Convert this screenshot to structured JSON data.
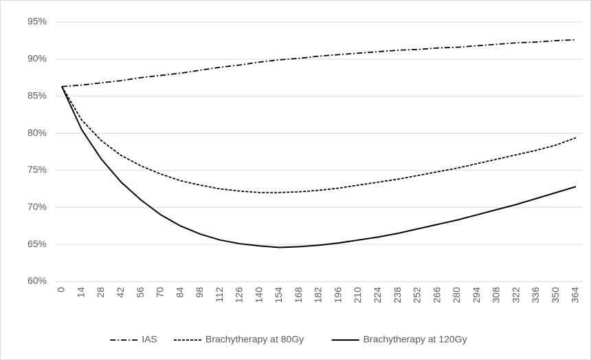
{
  "chart_data": {
    "type": "line",
    "categories": [
      "0",
      "14",
      "28",
      "42",
      "56",
      "70",
      "84",
      "98",
      "112",
      "126",
      "140",
      "154",
      "168",
      "182",
      "196",
      "210",
      "224",
      "238",
      "252",
      "266",
      "280",
      "294",
      "308",
      "322",
      "336",
      "350",
      "364"
    ],
    "series": [
      {
        "name": "IAS",
        "color": "#000000",
        "dash": "dash-dot",
        "values": [
          86.3,
          86.5,
          86.8,
          87.1,
          87.5,
          87.8,
          88.1,
          88.5,
          88.9,
          89.2,
          89.6,
          89.9,
          90.1,
          90.4,
          90.6,
          90.8,
          91.0,
          91.2,
          91.3,
          91.5,
          91.6,
          91.8,
          92.0,
          92.2,
          92.3,
          92.5,
          92.6
        ]
      },
      {
        "name": "Brachytherapy at 80Gy",
        "color": "#000000",
        "dash": "dashed",
        "values": [
          86.3,
          81.8,
          79.0,
          77.0,
          75.6,
          74.5,
          73.6,
          73.0,
          72.5,
          72.2,
          72.0,
          72.0,
          72.1,
          72.3,
          72.6,
          73.0,
          73.4,
          73.8,
          74.3,
          74.8,
          75.3,
          75.9,
          76.5,
          77.1,
          77.7,
          78.4,
          79.4
        ]
      },
      {
        "name": "Brachytherapy at 120Gy",
        "color": "#000000",
        "dash": "solid",
        "values": [
          86.3,
          80.5,
          76.5,
          73.4,
          71.0,
          69.0,
          67.5,
          66.4,
          65.6,
          65.1,
          64.8,
          64.6,
          64.7,
          64.9,
          65.2,
          65.6,
          66.0,
          66.5,
          67.1,
          67.7,
          68.3,
          69.0,
          69.7,
          70.4,
          71.2,
          72.0,
          72.8
        ]
      }
    ],
    "ylim": [
      60,
      95
    ],
    "yticks": [
      {
        "value": 60,
        "label": "60%"
      },
      {
        "value": 65,
        "label": "65%"
      },
      {
        "value": 70,
        "label": "70%"
      },
      {
        "value": 75,
        "label": "75%"
      },
      {
        "value": 80,
        "label": "80%"
      },
      {
        "value": 85,
        "label": "85%"
      },
      {
        "value": 90,
        "label": "90%"
      },
      {
        "value": 95,
        "label": "95%"
      }
    ],
    "grid": true,
    "legend": "bottom"
  }
}
